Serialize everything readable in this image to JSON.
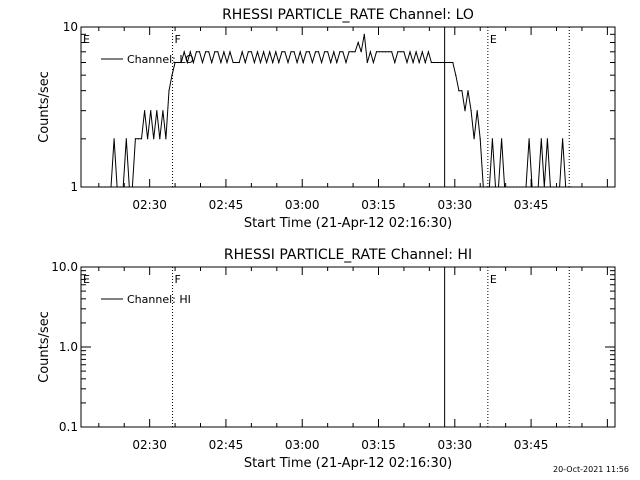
{
  "footer": {
    "timestamp": "20-Oct-2021 11:56"
  },
  "chart_data": [
    {
      "type": "line",
      "title": "RHESSI PARTICLE_RATE Channel: LO",
      "xlabel": "Start Time (21-Apr-12 02:16:30)",
      "ylabel": "Counts/sec",
      "yscale": "log",
      "ylim": [
        1,
        10
      ],
      "xlim": [
        "02:16:30",
        "04:01:30"
      ],
      "x_ticks": [
        "02:30",
        "02:45",
        "03:00",
        "03:15",
        "03:30",
        "03:45"
      ],
      "y_ticks": [
        "1",
        "10"
      ],
      "legend": {
        "entries": [
          "Channel: LO"
        ],
        "placement": "top-left"
      },
      "series": [
        {
          "name": "Channel: LO",
          "x": [
            "02:20:00",
            "02:20:36",
            "02:21:12",
            "02:21:48",
            "02:22:24",
            "02:23:00",
            "02:23:36",
            "02:24:12",
            "02:24:48",
            "02:25:24",
            "02:26:00",
            "02:26:36",
            "02:27:12",
            "02:27:48",
            "02:28:24",
            "02:29:00",
            "02:29:36",
            "02:30:12",
            "02:30:48",
            "02:31:24",
            "02:32:00",
            "02:32:36",
            "02:33:12",
            "02:33:48",
            "02:34:24",
            "02:35:00",
            "02:35:36",
            "02:36:12",
            "02:36:48",
            "02:37:24",
            "02:38:00",
            "02:38:36",
            "02:39:12",
            "02:39:48",
            "02:40:24",
            "02:41:00",
            "02:41:36",
            "02:42:12",
            "02:42:48",
            "02:43:24",
            "02:44:00",
            "02:44:36",
            "02:45:12",
            "02:45:48",
            "02:46:24",
            "02:47:00",
            "02:47:36",
            "02:48:12",
            "02:48:48",
            "02:49:24",
            "02:50:00",
            "02:50:36",
            "02:51:12",
            "02:51:48",
            "02:52:24",
            "02:53:00",
            "02:53:36",
            "02:54:12",
            "02:54:48",
            "02:55:24",
            "02:56:00",
            "02:56:36",
            "02:57:12",
            "02:57:48",
            "02:58:24",
            "02:59:00",
            "02:59:36",
            "03:00:12",
            "03:00:48",
            "03:01:24",
            "03:02:00",
            "03:02:36",
            "03:03:12",
            "03:03:48",
            "03:04:24",
            "03:05:00",
            "03:05:36",
            "03:06:12",
            "03:06:48",
            "03:07:24",
            "03:08:00",
            "03:08:36",
            "03:09:12",
            "03:09:48",
            "03:10:24",
            "03:11:00",
            "03:11:36",
            "03:12:12",
            "03:12:48",
            "03:13:24",
            "03:14:00",
            "03:14:36",
            "03:15:12",
            "03:15:48",
            "03:16:24",
            "03:17:00",
            "03:17:36",
            "03:18:12",
            "03:18:48",
            "03:19:24",
            "03:20:00",
            "03:20:36",
            "03:21:12",
            "03:21:48",
            "03:22:24",
            "03:23:00",
            "03:23:36",
            "03:24:12",
            "03:24:48",
            "03:25:24",
            "03:26:00",
            "03:26:36",
            "03:27:12",
            "03:27:48",
            "03:28:24",
            "03:29:00",
            "03:29:36",
            "03:30:12",
            "03:30:48",
            "03:31:24",
            "03:32:00",
            "03:32:36",
            "03:33:12",
            "03:33:48",
            "03:34:24",
            "03:35:00",
            "03:35:36",
            "03:36:12",
            "03:36:48",
            "03:37:24",
            "03:38:00",
            "03:38:36",
            "03:39:12",
            "03:39:48",
            "03:40:24",
            "03:41:00",
            "03:41:36",
            "03:42:12",
            "03:42:48",
            "03:43:24",
            "03:44:00",
            "03:44:36",
            "03:45:12",
            "03:45:48",
            "03:46:24",
            "03:47:00",
            "03:47:36",
            "03:48:12",
            "03:48:48",
            "03:49:24",
            "03:50:00",
            "03:50:36",
            "03:51:12",
            "03:51:48",
            "03:52:24",
            "03:53:00"
          ],
          "values": [
            1,
            1,
            1,
            1,
            1,
            2,
            1,
            1,
            1,
            2,
            1,
            1,
            2,
            2,
            2,
            3,
            2,
            3,
            2,
            3,
            2,
            3,
            2,
            4,
            5,
            6,
            6,
            6,
            7,
            6,
            7,
            6,
            7,
            7,
            6,
            7,
            7,
            6,
            7,
            7,
            6,
            7,
            6,
            7,
            6,
            6,
            6,
            7,
            6,
            7,
            7,
            6,
            7,
            6,
            7,
            6,
            7,
            6,
            7,
            6,
            7,
            7,
            6,
            7,
            7,
            6,
            7,
            6,
            7,
            7,
            6,
            7,
            7,
            6,
            7,
            7,
            6,
            7,
            6,
            7,
            7,
            6,
            7,
            7,
            7,
            8,
            7,
            9,
            6,
            7,
            6,
            7,
            7,
            7,
            7,
            7,
            7,
            6,
            7,
            7,
            7,
            6,
            7,
            6,
            7,
            6,
            7,
            6,
            7,
            6,
            6,
            6,
            6,
            6,
            6,
            6,
            6,
            5,
            4,
            4,
            3,
            4,
            3,
            2,
            3,
            2,
            1,
            1,
            1,
            2,
            1,
            1,
            2,
            1,
            1,
            1,
            1,
            1,
            1,
            1,
            1,
            2,
            1,
            1,
            1,
            2,
            1,
            2,
            1,
            1,
            1,
            1,
            2,
            1,
            1,
            1
          ]
        }
      ],
      "annotations": [
        {
          "label": "E",
          "x": "02:16:30",
          "style": "dotted"
        },
        {
          "label": "F",
          "x": "02:34:30",
          "style": "dotted"
        },
        {
          "label": "",
          "x": "03:28:00",
          "style": "solid"
        },
        {
          "label": "E",
          "x": "03:36:30",
          "style": "dotted"
        },
        {
          "label": "",
          "x": "03:52:30",
          "style": "dotted"
        }
      ]
    },
    {
      "type": "line",
      "title": "RHESSI PARTICLE_RATE Channel: HI",
      "xlabel": "Start Time (21-Apr-12 02:16:30)",
      "ylabel": "Counts/sec",
      "yscale": "log",
      "ylim": [
        0.1,
        10
      ],
      "xlim": [
        "02:16:30",
        "04:01:30"
      ],
      "x_ticks": [
        "02:30",
        "02:45",
        "03:00",
        "03:15",
        "03:30",
        "03:45"
      ],
      "y_ticks": [
        "0.1",
        "1.0",
        "10.0"
      ],
      "legend": {
        "entries": [
          "Channel: HI"
        ],
        "placement": "top-left"
      },
      "series": [
        {
          "name": "Channel: HI",
          "x": [],
          "values": []
        }
      ],
      "annotations": [
        {
          "label": "E",
          "x": "02:16:30",
          "style": "dotted"
        },
        {
          "label": "F",
          "x": "02:34:30",
          "style": "dotted"
        },
        {
          "label": "",
          "x": "03:28:00",
          "style": "solid"
        },
        {
          "label": "E",
          "x": "03:36:30",
          "style": "dotted"
        },
        {
          "label": "",
          "x": "03:52:30",
          "style": "dotted"
        }
      ]
    }
  ]
}
